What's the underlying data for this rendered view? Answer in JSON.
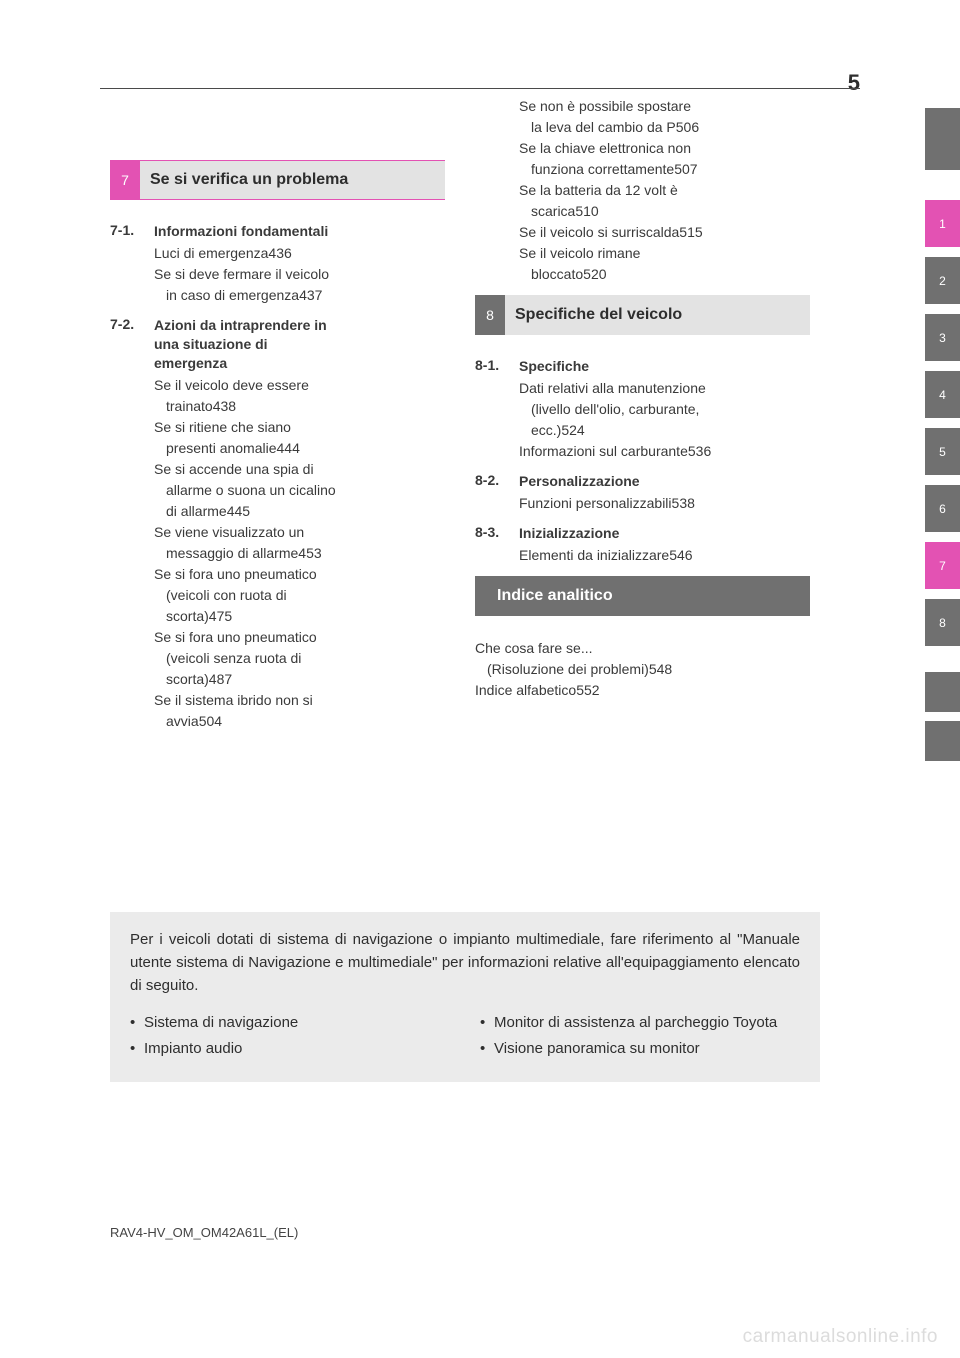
{
  "page_number": "5",
  "colors": {
    "pink": "#e352b3",
    "gray": "#707070",
    "light_gray_bg": "#e3e3e3",
    "note_bg": "#ebebeb",
    "text": "#3a3a3a",
    "watermark": "#dcdcdc"
  },
  "tabs": [
    "1",
    "2",
    "3",
    "4",
    "5",
    "6",
    "7",
    "8"
  ],
  "section7": {
    "num": "7",
    "title": "Se si verifica un problema",
    "subs": [
      {
        "num": "7-1.",
        "title": "Informazioni fondamentali",
        "items": [
          {
            "lines": [
              "Luci di emergenza"
            ],
            "page": "436"
          },
          {
            "lines": [
              "Se si deve fermare il veicolo",
              "in caso di emergenza"
            ],
            "page": "437"
          }
        ]
      },
      {
        "num": "7-2.",
        "title_lines": [
          "Azioni da intraprendere in",
          "una situazione di",
          "emergenza"
        ],
        "items": [
          {
            "lines": [
              "Se il veicolo deve essere",
              "trainato"
            ],
            "page": "438"
          },
          {
            "lines": [
              "Se si ritiene che siano",
              "presenti anomalie"
            ],
            "page": "444"
          },
          {
            "lines": [
              "Se si accende una spia di",
              "allarme o suona un cicalino",
              "di allarme"
            ],
            "page": "445"
          },
          {
            "lines": [
              "Se viene visualizzato un",
              "messaggio di allarme"
            ],
            "page": "453"
          },
          {
            "lines": [
              "Se si fora uno pneumatico",
              "(veicoli con ruota di",
              "scorta)"
            ],
            "page": "475"
          },
          {
            "lines": [
              "Se si fora uno pneumatico",
              "(veicoli senza ruota di",
              "scorta)"
            ],
            "page": "487"
          },
          {
            "lines": [
              "Se il sistema ibrido non si",
              "avvia"
            ],
            "page": "504"
          }
        ]
      }
    ]
  },
  "right_top_items": [
    {
      "lines": [
        "Se non è possibile spostare",
        "la leva del cambio da P"
      ],
      "page": "506"
    },
    {
      "lines": [
        "Se la chiave elettronica non",
        "funziona correttamente"
      ],
      "page": "507"
    },
    {
      "lines": [
        "Se la batteria da 12 volt è",
        "scarica"
      ],
      "page": "510"
    },
    {
      "lines": [
        "Se il veicolo si surriscalda"
      ],
      "page": "515"
    },
    {
      "lines": [
        "Se il veicolo rimane",
        "bloccato"
      ],
      "page": "520"
    }
  ],
  "section8": {
    "num": "8",
    "title": "Specifiche del veicolo",
    "subs": [
      {
        "num": "8-1.",
        "title": "Specifiche",
        "items": [
          {
            "lines": [
              "Dati relativi alla manutenzione",
              "(livello dell'olio, carburante,",
              "ecc.)"
            ],
            "page": "524"
          },
          {
            "lines": [
              "Informazioni sul carburante"
            ],
            "page": "536"
          }
        ]
      },
      {
        "num": "8-2.",
        "title": "Personalizzazione",
        "items": [
          {
            "lines": [
              "Funzioni personalizzabili"
            ],
            "page": "538"
          }
        ]
      },
      {
        "num": "8-3.",
        "title": "Inizializzazione",
        "items": [
          {
            "lines": [
              "Elementi da inizializzare"
            ],
            "page": "546"
          }
        ]
      }
    ]
  },
  "section_index": {
    "title": "Indice analitico",
    "items": [
      {
        "lines": [
          "Che cosa fare se...",
          "(Risoluzione dei problemi)"
        ],
        "page": "548"
      },
      {
        "lines": [
          "Indice alfabetico"
        ],
        "page": "552"
      }
    ]
  },
  "note": {
    "intro": "Per i veicoli dotati di sistema di navigazione o impianto multimediale, fare riferimento al \"Manuale utente sistema di Navigazione e multimediale\" per informazioni relative all'equipaggiamento elencato di seguito.",
    "left": [
      "Sistema di navigazione",
      "Impianto audio"
    ],
    "right": [
      "Monitor di assistenza al parcheggio Toyota",
      "Visione panoramica su monitor"
    ]
  },
  "footer": "RAV4-HV_OM_OM42A61L_(EL)",
  "watermark": "carmanualsonline.info"
}
